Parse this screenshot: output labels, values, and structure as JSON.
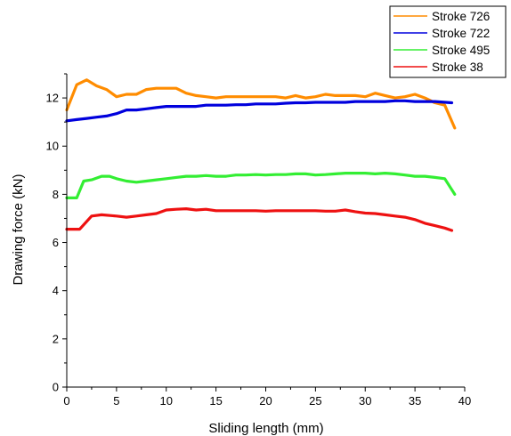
{
  "chart_data": {
    "type": "line",
    "title": "",
    "xlabel": "Sliding length (mm)",
    "ylabel": "Drawing force (kN)",
    "xlim": [
      0,
      40
    ],
    "ylim": [
      0,
      13
    ],
    "xticks": [
      0,
      5,
      10,
      15,
      20,
      25,
      30,
      35,
      40
    ],
    "yticks": [
      0,
      2,
      4,
      6,
      8,
      10,
      12
    ],
    "grid": false,
    "legend_position": "top-right",
    "series": [
      {
        "name": "Stroke 726",
        "color": "#ff8c00",
        "x": [
          0,
          1,
          2,
          3,
          4,
          5,
          6,
          7,
          8,
          9,
          10,
          11,
          12,
          13,
          14,
          15,
          16,
          17,
          18,
          19,
          20,
          21,
          22,
          23,
          24,
          25,
          26,
          27,
          28,
          29,
          30,
          31,
          32,
          33,
          34,
          35,
          36,
          37,
          38,
          39
        ],
        "values": [
          11.5,
          12.55,
          12.75,
          12.5,
          12.35,
          12.05,
          12.15,
          12.15,
          12.35,
          12.4,
          12.4,
          12.4,
          12.2,
          12.1,
          12.05,
          12.0,
          12.05,
          12.05,
          12.05,
          12.05,
          12.05,
          12.05,
          12.0,
          12.1,
          12.0,
          12.05,
          12.15,
          12.1,
          12.1,
          12.1,
          12.05,
          12.2,
          12.1,
          12.0,
          12.05,
          12.15,
          12.0,
          11.8,
          11.7,
          10.75
        ]
      },
      {
        "name": "Stroke 722",
        "color": "#0000dd",
        "x": [
          0,
          1,
          2,
          3,
          4,
          5,
          6,
          7,
          8,
          9,
          10,
          11,
          12,
          13,
          14,
          15,
          16,
          17,
          18,
          19,
          20,
          21,
          22,
          23,
          24,
          25,
          26,
          27,
          28,
          29,
          30,
          31,
          32,
          33,
          34,
          35,
          36,
          37,
          38.7
        ],
        "values": [
          11.05,
          11.1,
          11.15,
          11.2,
          11.25,
          11.35,
          11.5,
          11.5,
          11.55,
          11.6,
          11.65,
          11.65,
          11.65,
          11.65,
          11.7,
          11.7,
          11.7,
          11.72,
          11.72,
          11.75,
          11.75,
          11.75,
          11.78,
          11.8,
          11.8,
          11.82,
          11.82,
          11.82,
          11.82,
          11.85,
          11.85,
          11.85,
          11.85,
          11.88,
          11.88,
          11.85,
          11.85,
          11.85,
          11.8
        ]
      },
      {
        "name": "Stroke 495",
        "color": "#33ee33",
        "x": [
          0,
          1,
          1.7,
          2.5,
          3.5,
          4.3,
          5,
          6,
          7,
          8,
          9,
          10,
          11,
          12,
          13,
          14,
          15,
          16,
          17,
          18,
          19,
          20,
          21,
          22,
          23,
          24,
          25,
          26,
          27,
          28,
          29,
          30,
          31,
          32,
          33,
          34,
          35,
          36,
          37,
          38,
          39
        ],
        "values": [
          7.85,
          7.85,
          8.55,
          8.6,
          8.75,
          8.75,
          8.65,
          8.55,
          8.5,
          8.55,
          8.6,
          8.65,
          8.7,
          8.75,
          8.75,
          8.78,
          8.75,
          8.75,
          8.8,
          8.8,
          8.82,
          8.8,
          8.82,
          8.82,
          8.85,
          8.85,
          8.8,
          8.82,
          8.85,
          8.88,
          8.88,
          8.88,
          8.85,
          8.88,
          8.85,
          8.8,
          8.75,
          8.75,
          8.7,
          8.65,
          8.0
        ]
      },
      {
        "name": "Stroke 38",
        "color": "#ee1111",
        "x": [
          0,
          1.3,
          2.5,
          3.5,
          5,
          6,
          7,
          8,
          9,
          10,
          11,
          12,
          13,
          14,
          15,
          16,
          17,
          18,
          19,
          20,
          21,
          22,
          23,
          24,
          25,
          26,
          27,
          28,
          29,
          30,
          31,
          32,
          33,
          34,
          35,
          36,
          37,
          38,
          38.7
        ],
        "values": [
          6.55,
          6.55,
          7.1,
          7.15,
          7.1,
          7.05,
          7.1,
          7.15,
          7.2,
          7.35,
          7.38,
          7.4,
          7.35,
          7.38,
          7.32,
          7.32,
          7.32,
          7.32,
          7.32,
          7.3,
          7.32,
          7.32,
          7.32,
          7.32,
          7.32,
          7.3,
          7.3,
          7.35,
          7.28,
          7.22,
          7.2,
          7.15,
          7.1,
          7.05,
          6.95,
          6.8,
          6.7,
          6.6,
          6.5
        ]
      }
    ]
  }
}
